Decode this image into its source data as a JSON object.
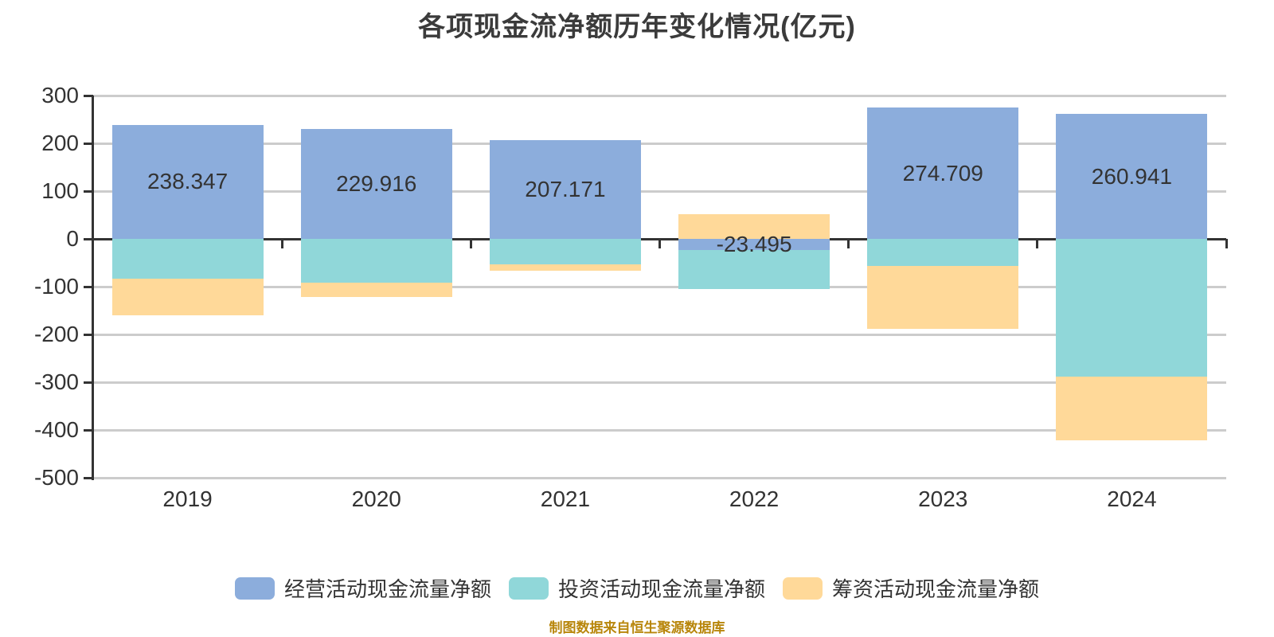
{
  "header": {
    "title": "各项现金流净额历年变化情况(亿元)"
  },
  "footer": {
    "caption": "制图数据来自恒生聚源数据库",
    "caption_color": "#b8860b"
  },
  "colors": {
    "background": "#ffffff",
    "axis": "#333333",
    "grid": "#cccccc",
    "text": "#333333",
    "title": "#3b3b3b"
  },
  "chart_data": {
    "type": "bar",
    "stacked": true,
    "title": "各项现金流净额历年变化情况(亿元)",
    "categories": [
      "2019",
      "2020",
      "2021",
      "2022",
      "2023",
      "2024"
    ],
    "series": [
      {
        "name": "经营活动现金流量净额",
        "color": "#8caddc",
        "values": [
          238.347,
          229.916,
          207.171,
          -23.495,
          274.709,
          260.941
        ]
      },
      {
        "name": "投资活动现金流量净额",
        "color": "#90d7d9",
        "values": [
          -83,
          -92,
          -53,
          -82,
          -57,
          -289
        ]
      },
      {
        "name": "筹资活动现金流量净额",
        "color": "#ffd999",
        "values": [
          -77,
          -30,
          -13,
          52,
          -132,
          -132
        ]
      }
    ],
    "bar_labels": [
      "238.347",
      "229.916",
      "207.171",
      "-23.495",
      "274.709",
      "260.941"
    ],
    "bar_labels_on_series": "经营活动现金流量净额",
    "xlabel": "",
    "ylabel": "",
    "y_axis": {
      "min": -500,
      "max": 300,
      "step": 100,
      "ticks": [
        300,
        200,
        100,
        0,
        -100,
        -200,
        -300,
        -400,
        -500
      ]
    },
    "grid": true,
    "legend_position": "bottom"
  }
}
